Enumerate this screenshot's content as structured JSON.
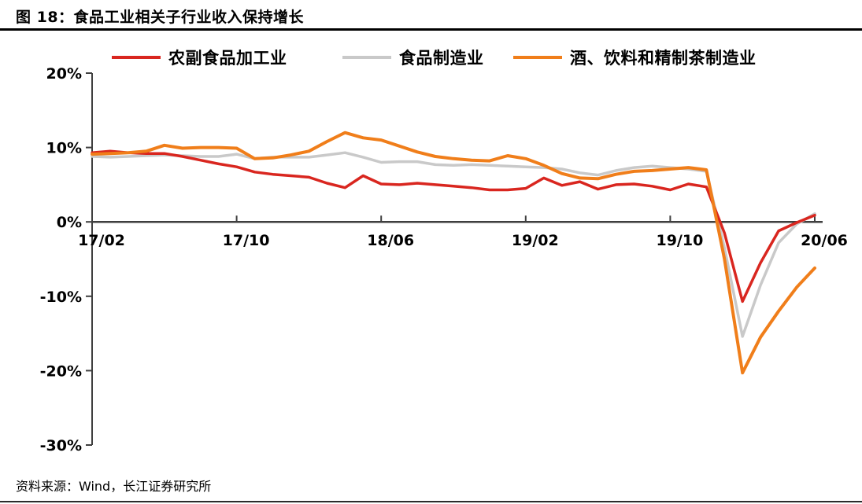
{
  "header": {
    "title": "图 18：食品工业相关子行业收入保持增长"
  },
  "footer": {
    "source": "资料来源：Wind，长江证券研究所"
  },
  "colors": {
    "axis": "#3f3f3f",
    "tick_text": "#000000",
    "red": "#d9261f",
    "gray": "#c9c9c9",
    "orange": "#f07e1a"
  },
  "chart_data": {
    "type": "line",
    "title": "食品工业相关子行业收入保持增长",
    "xlabel": "",
    "ylabel": "",
    "unit": "%",
    "grid": false,
    "legend_position": "top",
    "ylim": [
      -30,
      20
    ],
    "y_ticks": [
      20,
      10,
      0,
      -10,
      -20,
      -30
    ],
    "y_tick_labels": [
      "20%",
      "10%",
      "0%",
      "-10%",
      "-20%",
      "-30%"
    ],
    "x": [
      "17/02",
      "17/03",
      "17/04",
      "17/05",
      "17/06",
      "17/07",
      "17/08",
      "17/09",
      "17/10",
      "17/11",
      "17/12",
      "18/01",
      "18/02",
      "18/03",
      "18/04",
      "18/05",
      "18/06",
      "18/07",
      "18/08",
      "18/09",
      "18/10",
      "18/11",
      "18/12",
      "19/01",
      "19/02",
      "19/03",
      "19/04",
      "19/05",
      "19/06",
      "19/07",
      "19/08",
      "19/09",
      "19/10",
      "19/11",
      "19/12",
      "20/01",
      "20/02",
      "20/03",
      "20/04",
      "20/05",
      "20/06"
    ],
    "x_axis_ticks": [
      "17/02",
      "17/10",
      "18/06",
      "19/02",
      "19/10",
      "20/06"
    ],
    "x_axis_tick_indices": [
      0,
      8,
      16,
      24,
      32,
      40
    ],
    "series": [
      {
        "name": "农副食品加工业",
        "color": "#d9261f",
        "values": [
          9.3,
          9.5,
          9.3,
          9.2,
          9.2,
          8.8,
          8.3,
          7.8,
          7.4,
          6.7,
          6.4,
          6.2,
          6.0,
          5.2,
          4.6,
          6.2,
          5.1,
          5.0,
          5.2,
          5.0,
          4.8,
          4.6,
          4.3,
          4.3,
          4.5,
          5.9,
          4.9,
          5.4,
          4.4,
          5.0,
          5.1,
          4.8,
          4.3,
          5.1,
          4.7,
          -1.5,
          -10.7,
          -5.5,
          -1.2,
          -0.1,
          0.9
        ]
      },
      {
        "name": "食品制造业",
        "color": "#c9c9c9",
        "values": [
          8.8,
          8.7,
          8.8,
          8.9,
          9.0,
          8.9,
          8.8,
          8.8,
          9.1,
          8.5,
          8.7,
          8.7,
          8.7,
          9.0,
          9.3,
          8.7,
          8.0,
          8.1,
          8.1,
          7.7,
          7.6,
          7.7,
          7.6,
          7.5,
          7.4,
          7.3,
          7.1,
          6.6,
          6.3,
          6.9,
          7.3,
          7.5,
          7.3,
          7.1,
          6.8,
          -3.5,
          -15.4,
          -8.5,
          -2.8,
          -0.3,
          1.1
        ]
      },
      {
        "name": "酒、饮料和精制茶制造业",
        "color": "#f07e1a",
        "values": [
          9.1,
          9.2,
          9.3,
          9.5,
          10.3,
          9.9,
          10.0,
          10.0,
          9.9,
          8.5,
          8.6,
          9.0,
          9.5,
          10.8,
          12.0,
          11.3,
          11.0,
          10.2,
          9.4,
          8.8,
          8.5,
          8.3,
          8.2,
          8.9,
          8.5,
          7.6,
          6.5,
          5.9,
          5.8,
          6.4,
          6.8,
          6.9,
          7.1,
          7.3,
          7.0,
          -5.0,
          -20.3,
          -15.5,
          -12.0,
          -8.8,
          -6.2
        ]
      }
    ]
  }
}
